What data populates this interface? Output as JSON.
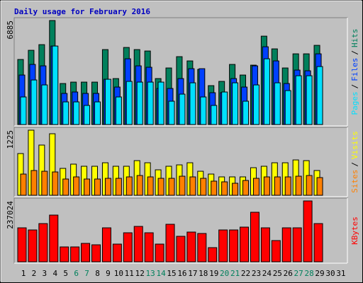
{
  "chart_data": [
    {
      "type": "bar",
      "title": "Daily usage for February 2016",
      "categories": [
        1,
        2,
        3,
        4,
        5,
        6,
        7,
        8,
        9,
        10,
        11,
        12,
        13,
        14,
        15,
        16,
        17,
        18,
        19,
        20,
        21,
        22,
        23,
        24,
        25,
        26,
        27,
        28,
        29,
        30,
        31
      ],
      "ylim": [
        0,
        6885
      ],
      "yticks": [
        6885
      ],
      "legend_separator": "/",
      "series": [
        {
          "name": "Hits",
          "color": "#00805c",
          "values": [
            4306,
            4914,
            5288,
            6885,
            2714,
            2808,
            2808,
            2808,
            4961,
            3042,
            5101,
            4961,
            4867,
            3042,
            3744,
            4493,
            4212,
            3650,
            2574,
            2855,
            3978,
            3276,
            3931,
            5850,
            5008,
            3744,
            4680,
            4680,
            5242,
            null,
            null
          ]
        },
        {
          "name": "Files",
          "color": "#0040ff",
          "values": [
            3276,
            3978,
            3884,
            5195,
            2059,
            2153,
            2059,
            2059,
            2995,
            2480,
            4352,
            3884,
            3791,
            2387,
            2387,
            3042,
            3697,
            3697,
            2106,
            2106,
            3042,
            2480,
            3884,
            5148,
            4212,
            2714,
            3604,
            3557,
            4680,
            null,
            null
          ]
        },
        {
          "name": "Pages",
          "color": "#00e0ff",
          "values": [
            1825,
            2948,
            2621,
            5195,
            1498,
            1498,
            1264,
            1498,
            2995,
            1825,
            2855,
            2808,
            2808,
            2808,
            1544,
            2012,
            2761,
            1825,
            1264,
            2153,
            2761,
            1544,
            2621,
            4352,
            2761,
            2246,
            3229,
            3229,
            3838,
            null,
            null
          ]
        }
      ]
    },
    {
      "type": "bar",
      "categories": [
        1,
        2,
        3,
        4,
        5,
        6,
        7,
        8,
        9,
        10,
        11,
        12,
        13,
        14,
        15,
        16,
        17,
        18,
        19,
        20,
        21,
        22,
        23,
        24,
        25,
        26,
        27,
        28,
        29,
        30,
        31
      ],
      "ylim": [
        0,
        1225
      ],
      "yticks": [
        1225
      ],
      "legend_separator": "/",
      "series": [
        {
          "name": "Visits",
          "color": "#ffff00",
          "values": [
            785,
            1225,
            945,
            1158,
            506,
            586,
            546,
            546,
            612,
            546,
            546,
            652,
            612,
            479,
            546,
            572,
            612,
            452,
            399,
            346,
            346,
            346,
            519,
            546,
            612,
            612,
            665,
            652,
            466,
            null,
            null
          ]
        },
        {
          "name": "Sites",
          "color": "#ff8000",
          "values": [
            399,
            466,
            452,
            439,
            306,
            346,
            306,
            306,
            319,
            319,
            346,
            372,
            346,
            319,
            319,
            359,
            346,
            319,
            266,
            253,
            226,
            279,
            319,
            346,
            346,
            346,
            359,
            372,
            333,
            null,
            null
          ]
        }
      ]
    },
    {
      "type": "bar",
      "categories": [
        1,
        2,
        3,
        4,
        5,
        6,
        7,
        8,
        9,
        10,
        11,
        12,
        13,
        14,
        15,
        16,
        17,
        18,
        19,
        20,
        21,
        22,
        23,
        24,
        25,
        26,
        27,
        28,
        29,
        30,
        31
      ],
      "ylim": [
        0,
        237024
      ],
      "yticks": [
        237024
      ],
      "weekend_days": [
        6,
        7,
        13,
        14,
        20,
        21,
        27,
        28
      ],
      "weekend_color": "#00805c",
      "weekday_color": "#000000",
      "series": [
        {
          "name": "KBytes",
          "color": "#ff0000",
          "values": [
            132288,
            124020,
            148824,
            181896,
            57876,
            57876,
            71656,
            66144,
            132288,
            68900,
            112996,
            137800,
            112996,
            68900,
            146068,
            99216,
            115752,
            110240,
            55120,
            124020,
            124020,
            135044,
            192920,
            132288,
            82680,
            132288,
            132288,
            237024,
            148824,
            null,
            null
          ]
        }
      ]
    }
  ]
}
